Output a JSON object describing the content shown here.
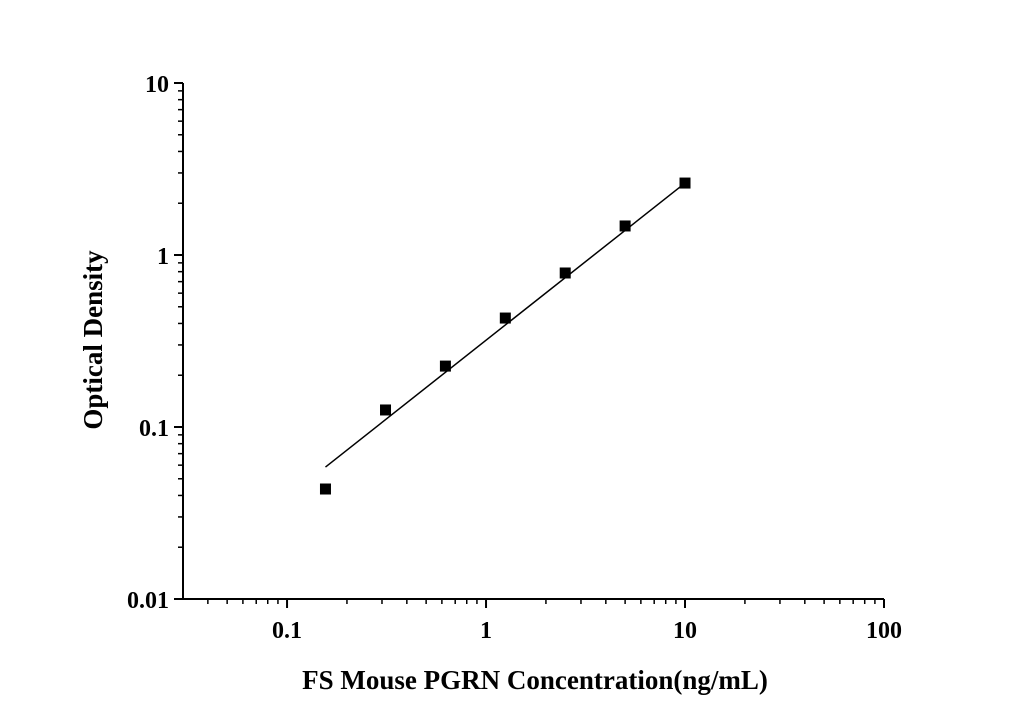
{
  "chart_data": {
    "type": "scatter",
    "x_label": "FS Mouse PGRN Concentration(ng/mL)",
    "y_label": "Optical Density",
    "log_x": true,
    "log_y": true,
    "xlim": [
      0.03,
      100
    ],
    "ylim": [
      0.01,
      10
    ],
    "xticks": [
      0.1,
      1,
      10,
      100
    ],
    "yticks": [
      0.01,
      0.1,
      1,
      10
    ],
    "xminorticks": [
      0.04,
      0.05,
      0.06,
      0.07,
      0.08,
      0.09,
      0.2,
      0.3,
      0.4,
      0.5,
      0.6,
      0.7,
      0.8,
      0.9,
      2,
      3,
      4,
      5,
      6,
      7,
      8,
      9,
      20,
      30,
      40,
      50,
      60,
      70,
      80,
      90
    ],
    "yminorticks": [
      0.02,
      0.03,
      0.04,
      0.05,
      0.06,
      0.07,
      0.08,
      0.09,
      0.2,
      0.3,
      0.4,
      0.5,
      0.6,
      0.7,
      0.8,
      0.9,
      2,
      3,
      4,
      5,
      6,
      7,
      8,
      9
    ],
    "series": [
      {
        "color": "#000000",
        "marker": "square",
        "x": [
          0.156,
          0.3125,
          0.625,
          1.25,
          2.5,
          5,
          10
        ],
        "values": [
          0.0436,
          0.1256,
          0.226,
          0.43,
          0.786,
          1.475,
          2.62
        ]
      }
    ],
    "fit_line": {
      "color": "#000000",
      "x": [
        0.156,
        10
      ],
      "values": [
        0.0585,
        2.62
      ]
    }
  }
}
